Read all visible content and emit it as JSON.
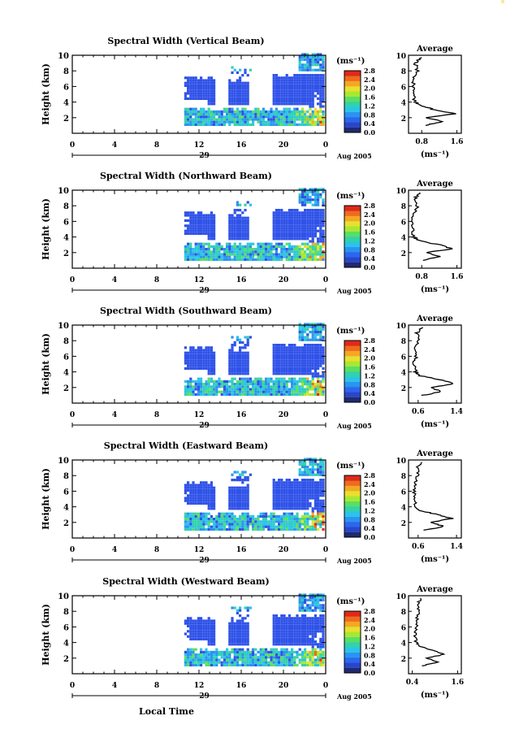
{
  "figure": {
    "x_axis_title": "Local Time",
    "y_axis_title": "Height (km)",
    "month_label": "Aug 2005",
    "x_ticks": [
      "0",
      "4",
      "8",
      "12",
      "16",
      "20",
      "0"
    ],
    "day_label": "29",
    "y_ticks": [
      "2",
      "4",
      "6",
      "8",
      "10"
    ],
    "colorbar_unit": "(ms⁻¹)",
    "colorbar_ticks": [
      "0.0",
      "0.4",
      "0.8",
      "1.2",
      "1.6",
      "2.0",
      "2.4",
      "2.8"
    ],
    "average_title": "Average",
    "average_unit": "(ms⁻¹)"
  },
  "colors": {
    "background_echo": "#2f52e8",
    "colorbar": [
      "#202a6e",
      "#2a46c8",
      "#2d66ee",
      "#2a94f0",
      "#2bc3e8",
      "#33d2a8",
      "#5ade64",
      "#a8e830",
      "#e8e030",
      "#f3a824",
      "#ef6a1e",
      "#de2a1a"
    ]
  },
  "chart_data": [
    {
      "type": "heatmap",
      "title": "Spectral Width (Vertical Beam)",
      "xlabel": "",
      "ylabel": "Height (km)",
      "xlim": [
        0,
        24
      ],
      "ylim": [
        0,
        10
      ],
      "colorbar_range": [
        0.0,
        2.8
      ],
      "average_profile": {
        "xlabel": "(ms⁻¹)",
        "ticks": [
          "0.8",
          "1.6"
        ],
        "xlim": [
          0.5,
          1.7
        ],
        "height": [
          1.0,
          1.5,
          2.0,
          2.5,
          3.0,
          3.5,
          4.0,
          5.0,
          6.0,
          7.0,
          8.0,
          9.0,
          9.7
        ],
        "value": [
          0.85,
          1.3,
          0.9,
          1.55,
          1.1,
          0.8,
          0.65,
          0.6,
          0.62,
          0.6,
          0.7,
          0.65,
          0.8
        ]
      }
    },
    {
      "type": "heatmap",
      "title": "Spectral Width (Northward Beam)",
      "xlabel": "",
      "ylabel": "Height (km)",
      "xlim": [
        0,
        24
      ],
      "ylim": [
        0,
        10
      ],
      "colorbar_range": [
        0.0,
        2.8
      ],
      "average_profile": {
        "xlabel": "(ms⁻¹)",
        "ticks": [
          "0.8",
          "1.6"
        ],
        "xlim": [
          0.5,
          1.7
        ],
        "height": [
          1.0,
          1.5,
          2.0,
          2.5,
          3.0,
          3.5,
          4.0,
          5.0,
          6.0,
          7.0,
          8.0,
          9.0,
          9.7
        ],
        "value": [
          0.8,
          1.2,
          0.9,
          1.5,
          1.2,
          0.75,
          0.62,
          0.6,
          0.6,
          0.62,
          0.7,
          0.65,
          0.75
        ]
      }
    },
    {
      "type": "heatmap",
      "title": "Spectral Width (Southward Beam)",
      "xlabel": "",
      "ylabel": "Height (km)",
      "xlim": [
        0,
        24
      ],
      "ylim": [
        0,
        10
      ],
      "colorbar_range": [
        0.0,
        2.8
      ],
      "average_profile": {
        "xlabel": "(ms⁻¹)",
        "ticks": [
          "0.6",
          "1.4"
        ],
        "xlim": [
          0.4,
          1.5
        ],
        "height": [
          1.0,
          1.5,
          2.0,
          2.5,
          3.0,
          3.5,
          4.0,
          5.0,
          6.0,
          7.0,
          8.0,
          9.0,
          9.7
        ],
        "value": [
          0.7,
          1.1,
          0.85,
          1.35,
          1.05,
          0.65,
          0.55,
          0.52,
          0.55,
          0.55,
          0.6,
          0.58,
          0.7
        ]
      }
    },
    {
      "type": "heatmap",
      "title": "Spectral Width (Eastward Beam)",
      "xlabel": "",
      "ylabel": "Height (km)",
      "xlim": [
        0,
        24
      ],
      "ylim": [
        0,
        10
      ],
      "colorbar_range": [
        0.0,
        2.8
      ],
      "average_profile": {
        "xlabel": "(ms⁻¹)",
        "ticks": [
          "0.6",
          "1.4"
        ],
        "xlim": [
          0.4,
          1.5
        ],
        "height": [
          1.0,
          1.5,
          2.0,
          2.5,
          3.0,
          3.5,
          4.0,
          5.0,
          6.0,
          7.0,
          8.0,
          9.0,
          9.7
        ],
        "value": [
          0.75,
          1.15,
          0.85,
          1.3,
          1.0,
          0.65,
          0.55,
          0.52,
          0.53,
          0.55,
          0.6,
          0.58,
          0.68
        ]
      }
    },
    {
      "type": "heatmap",
      "title": "Spectral Width (Westward Beam)",
      "xlabel": "Local Time",
      "ylabel": "Height (km)",
      "xlim": [
        0,
        24
      ],
      "ylim": [
        0,
        10
      ],
      "colorbar_range": [
        0.0,
        2.8
      ],
      "average_profile": {
        "xlabel": "(ms⁻¹)",
        "ticks": [
          "0.4",
          "1.6"
        ],
        "xlim": [
          0.3,
          1.7
        ],
        "height": [
          1.0,
          1.5,
          2.0,
          2.5,
          3.0,
          3.5,
          4.0,
          5.0,
          6.0,
          7.0,
          8.0,
          9.0,
          9.7
        ],
        "value": [
          0.65,
          1.1,
          0.8,
          1.25,
          0.95,
          0.6,
          0.5,
          0.48,
          0.5,
          0.52,
          0.58,
          0.55,
          0.62
        ]
      }
    }
  ]
}
